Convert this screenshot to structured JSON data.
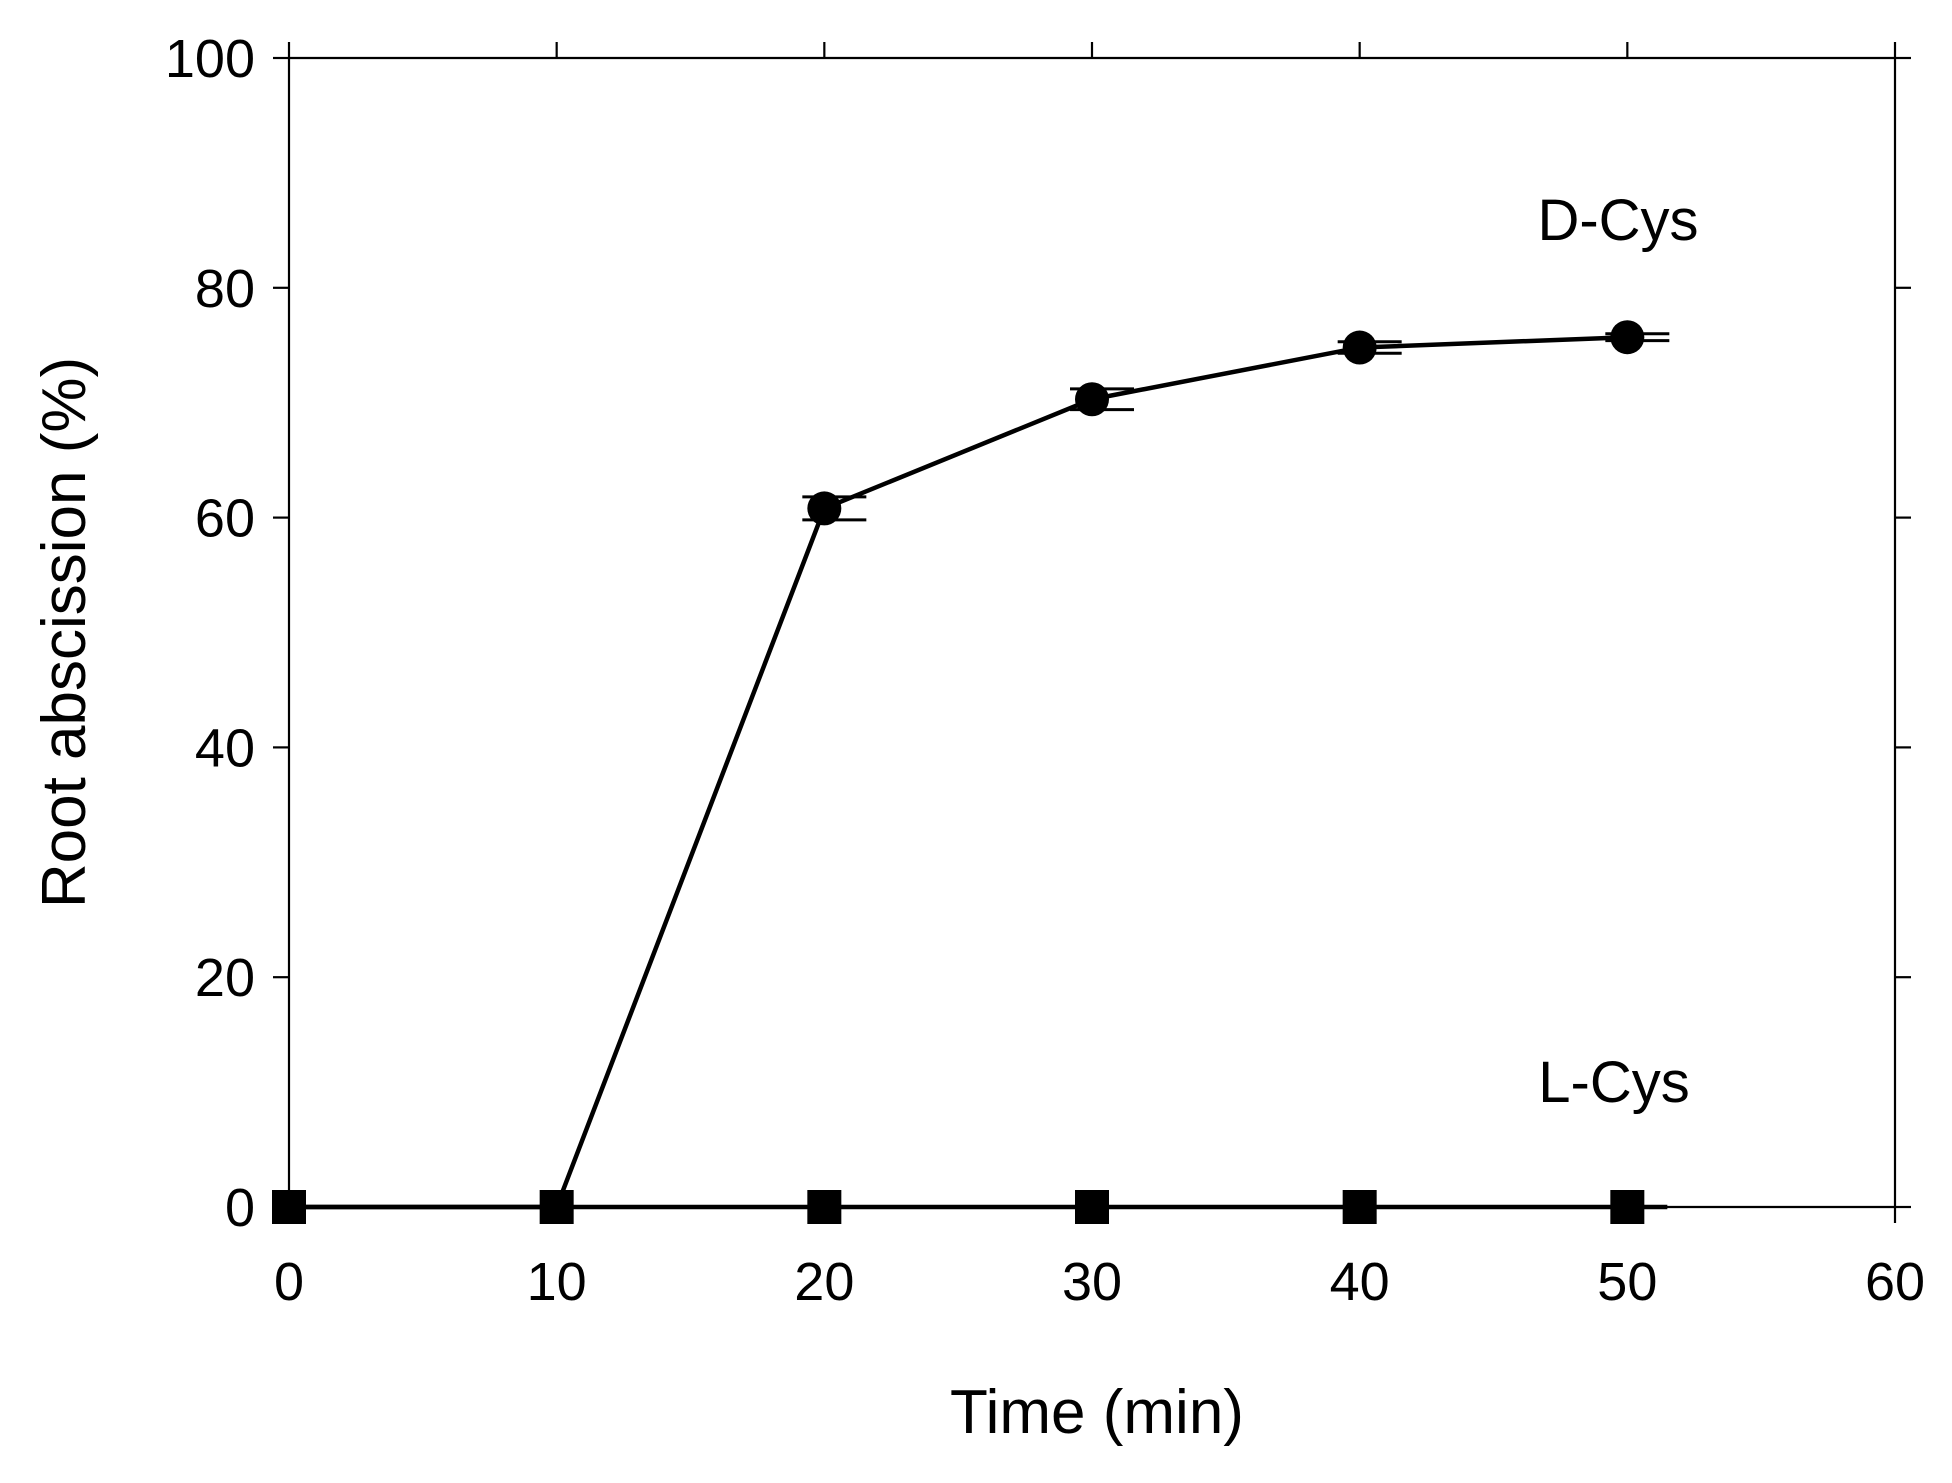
{
  "chart_data": {
    "type": "line",
    "xlabel": "Time (min)",
    "ylabel": "Root abscission (%)",
    "xlim": [
      0,
      60
    ],
    "ylim": [
      0,
      100
    ],
    "xticks": [
      0,
      10,
      20,
      30,
      40,
      50,
      60
    ],
    "yticks": [
      0,
      20,
      40,
      60,
      80,
      100
    ],
    "grid": false,
    "series": [
      {
        "name": "D-Cys",
        "marker": "circle",
        "color": "#000000",
        "x": [
          0,
          10,
          20,
          30,
          40,
          50
        ],
        "y": [
          0,
          0,
          60.8,
          70.3,
          74.8,
          75.7
        ],
        "error": [
          0,
          0,
          1.0,
          0.9,
          0.5,
          0.3
        ]
      },
      {
        "name": "L-Cys",
        "marker": "square",
        "color": "#000000",
        "x": [
          0,
          10,
          20,
          30,
          40,
          50
        ],
        "y": [
          0,
          0,
          0,
          0,
          0,
          0
        ],
        "error": [
          0,
          0,
          0,
          0,
          0,
          0
        ]
      }
    ]
  }
}
